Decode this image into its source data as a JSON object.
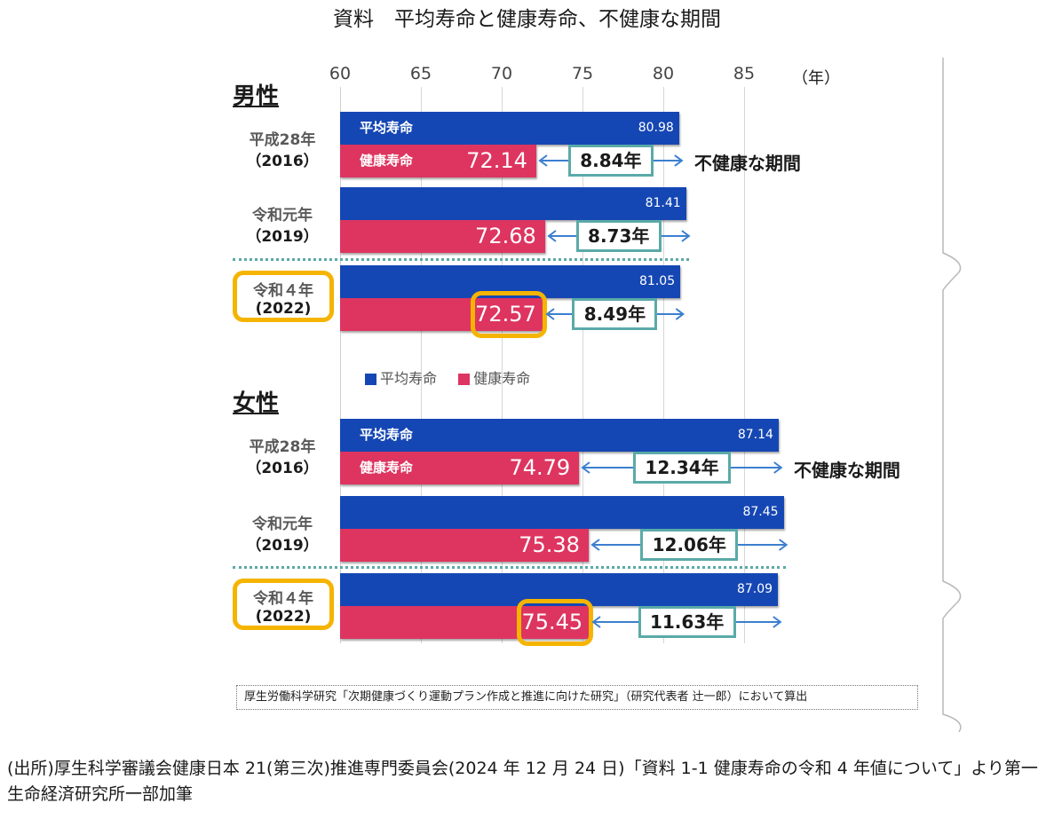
{
  "title": "資料　平均寿命と健康寿命、不健康な期間",
  "axis": {
    "ticks": [
      "60",
      "65",
      "70",
      "75",
      "80",
      "85"
    ],
    "unit": "（年）"
  },
  "legend": {
    "avg_label": "平均寿命",
    "healthy_label": "健康寿命"
  },
  "colors": {
    "avg": "#1547b4",
    "healthy": "#dd3560",
    "highlight": "#f5b400",
    "gap_box": "#5aaaa8",
    "arrow": "#3b7fd0"
  },
  "unhealthy_label": "不健康な期間",
  "source_note": "厚生労働科学研究「次期健康づくり運動プラン作成と推進に向けた研究」（研究代表者 辻一郎）において算出",
  "footer": "(出所)厚生科学審議会健康日本 21(第三次)推進専門委員会(2024 年 12 月 24 日)「資料 1-1 健康寿命の令和 4 年値について」より第一生命経済研究所一部加筆",
  "chart_data": {
    "type": "bar",
    "orientation": "horizontal",
    "xlim": [
      60,
      85
    ],
    "x_ticks": [
      60,
      65,
      70,
      75,
      80,
      85
    ],
    "unit": "（年）",
    "legend_position": "below male panel",
    "panels": [
      {
        "title": "男性",
        "groups": [
          {
            "era": "平成28年",
            "year": "（2016）",
            "avg": 80.98,
            "healthy": 72.14,
            "gap": "8.84年",
            "highlight": false,
            "labels": true
          },
          {
            "era": "令和元年",
            "year": "（2019）",
            "avg": 81.41,
            "healthy": 72.68,
            "gap": "8.73年",
            "highlight": false,
            "labels": false
          },
          {
            "era": "令和４年",
            "year": "(2022)",
            "avg": 81.05,
            "healthy": 72.57,
            "gap": "8.49年",
            "highlight": true,
            "labels": false
          }
        ]
      },
      {
        "title": "女性",
        "groups": [
          {
            "era": "平成28年",
            "year": "（2016）",
            "avg": 87.14,
            "healthy": 74.79,
            "gap": "12.34年",
            "highlight": false,
            "labels": true
          },
          {
            "era": "令和元年",
            "year": "（2019）",
            "avg": 87.45,
            "healthy": 75.38,
            "gap": "12.06年",
            "highlight": false,
            "labels": false
          },
          {
            "era": "令和４年",
            "year": "(2022)",
            "avg": 87.09,
            "healthy": 75.45,
            "gap": "11.63年",
            "highlight": true,
            "labels": false
          }
        ]
      }
    ]
  }
}
